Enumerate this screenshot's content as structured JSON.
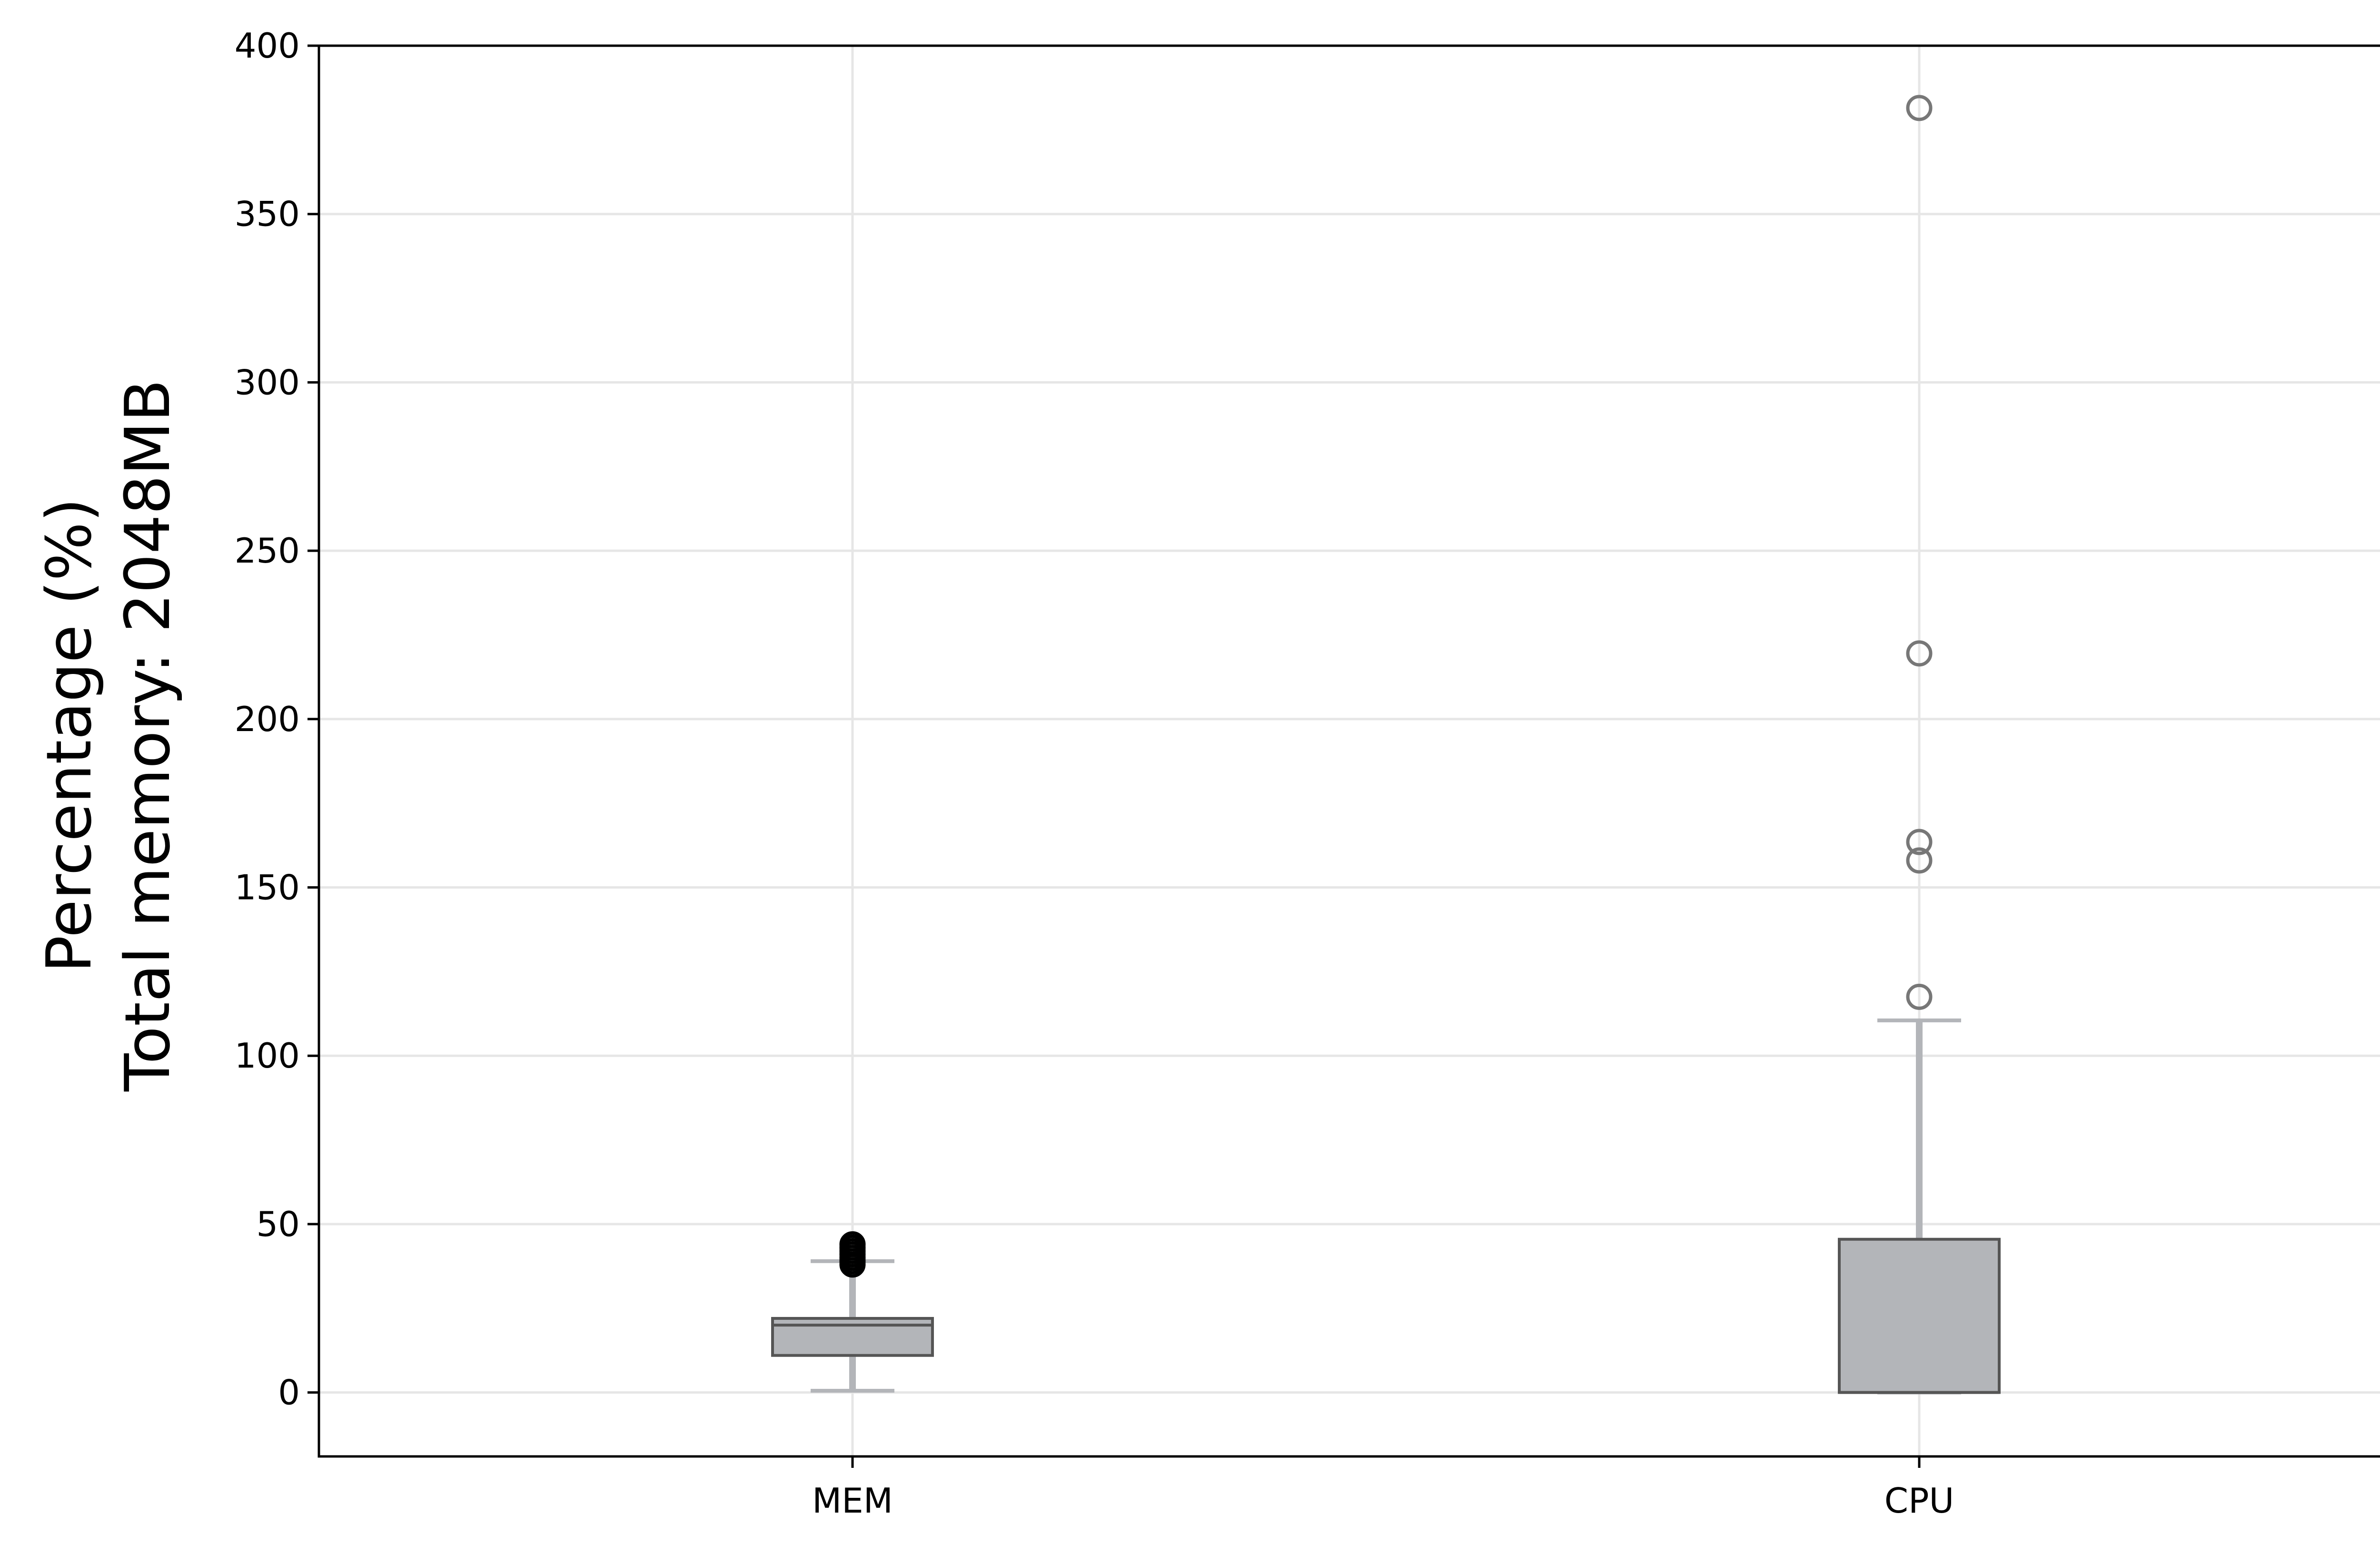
{
  "chart_data": {
    "type": "box",
    "title": "",
    "xlabel": "",
    "ylabel_lines": [
      "Percentage (%)",
      "Total memory: 2048MB"
    ],
    "ylim": [
      -19,
      400
    ],
    "yticks": [
      0,
      50,
      100,
      150,
      200,
      250,
      300,
      350,
      400
    ],
    "grid": true,
    "categories": [
      "MEM",
      "CPU"
    ],
    "boxes": [
      {
        "label": "MEM",
        "whisker_low": 0.5,
        "q1": 11,
        "median": 20,
        "q3": 22,
        "whisker_high": 39,
        "outliers": [
          38,
          39,
          40,
          41,
          42,
          43,
          44
        ]
      },
      {
        "label": "CPU",
        "whisker_low": 0,
        "q1": 0,
        "median": 0,
        "q3": 45.5,
        "whisker_high": 110.5,
        "outliers": [
          117.5,
          158,
          163.5,
          219.5,
          381.5
        ]
      }
    ],
    "colors": {
      "box_fill": "#b3b5b9",
      "box_edge": "#555555",
      "whisker": "#b3b5b9",
      "outlier_mem": "#000000",
      "outlier_cpu": "#777777",
      "grid": "#e6e6e6",
      "axis": "#000000"
    }
  }
}
